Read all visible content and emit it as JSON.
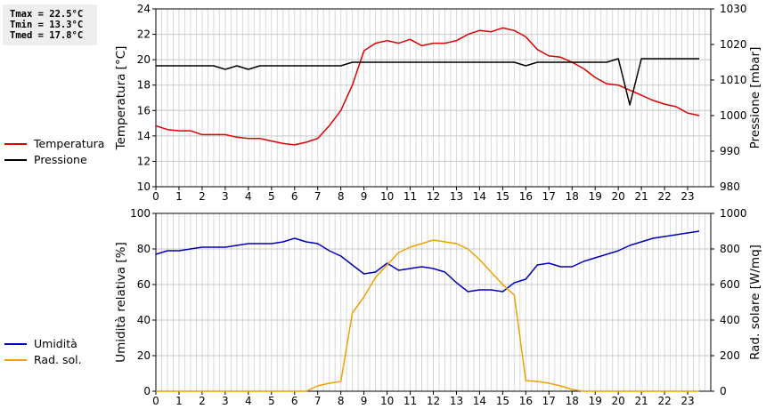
{
  "stats": {
    "tmax": "Tmax = 22.5°C",
    "tmin": "Tmin = 13.3°C",
    "tmed": "Tmed = 17.8°C"
  },
  "chart_data": [
    {
      "type": "line",
      "x_ticks": [
        0,
        1,
        2,
        3,
        4,
        5,
        6,
        7,
        8,
        9,
        10,
        11,
        12,
        13,
        14,
        15,
        16,
        17,
        18,
        19,
        20,
        21,
        22,
        23
      ],
      "xlim": [
        0,
        24
      ],
      "ylabel": "Temperatura [°C]",
      "ylabel_right": "Pressione [mbar]",
      "ylim": [
        10,
        24
      ],
      "ylim_right": [
        980,
        1030
      ],
      "y_ticks": [
        10,
        12,
        14,
        16,
        18,
        20,
        22,
        24
      ],
      "y_ticks_right": [
        980,
        990,
        1000,
        1010,
        1020,
        1030
      ],
      "grid": true,
      "legend_placement": "left",
      "series": [
        {
          "name": "Temperatura",
          "axis": "left",
          "color": "#dd0000",
          "x": [
            0,
            0.5,
            1,
            1.5,
            2,
            2.5,
            3,
            3.5,
            4,
            4.5,
            5,
            5.5,
            6,
            6.5,
            7,
            7.5,
            8,
            8.5,
            9,
            9.5,
            10,
            10.5,
            11,
            11.5,
            12,
            12.5,
            13,
            13.5,
            14,
            14.5,
            15,
            15.5,
            16,
            16.5,
            17,
            17.5,
            18,
            18.5,
            19,
            19.5,
            20,
            20.5,
            21,
            21.5,
            22,
            22.5,
            23,
            23.5
          ],
          "y": [
            14.8,
            14.5,
            14.4,
            14.4,
            14.1,
            14.1,
            14.1,
            13.9,
            13.8,
            13.8,
            13.6,
            13.4,
            13.3,
            13.5,
            13.8,
            14.8,
            16.0,
            18.0,
            20.7,
            21.3,
            21.5,
            21.3,
            21.6,
            21.1,
            21.3,
            21.3,
            21.5,
            22.0,
            22.3,
            22.2,
            22.5,
            22.3,
            21.8,
            20.8,
            20.3,
            20.2,
            19.8,
            19.3,
            18.6,
            18.1,
            18.0,
            17.6,
            17.2,
            16.8,
            16.5,
            16.3,
            15.8,
            15.6
          ]
        },
        {
          "name": "Pressione",
          "axis": "right",
          "color": "#000000",
          "x": [
            0,
            0.5,
            1,
            1.5,
            2,
            2.5,
            3,
            3.5,
            4,
            4.5,
            5,
            5.5,
            6,
            6.5,
            7,
            7.5,
            8,
            8.5,
            9,
            9.5,
            10,
            10.5,
            11,
            11.5,
            12,
            12.5,
            13,
            13.5,
            14,
            14.5,
            15,
            15.5,
            16,
            16.5,
            17,
            17.5,
            18,
            18.5,
            19,
            19.5,
            20,
            20.5,
            21,
            21.5,
            22,
            22.5,
            23,
            23.5
          ],
          "y": [
            1014,
            1014,
            1014,
            1014,
            1014,
            1014,
            1013,
            1014,
            1013,
            1014,
            1014,
            1014,
            1014,
            1014,
            1014,
            1014,
            1014,
            1015,
            1015,
            1015,
            1015,
            1015,
            1015,
            1015,
            1015,
            1015,
            1015,
            1015,
            1015,
            1015,
            1015,
            1015,
            1014,
            1015,
            1015,
            1015,
            1015,
            1015,
            1015,
            1015,
            1016,
            1003,
            1016,
            1016,
            1016,
            1016,
            1016,
            1016
          ]
        }
      ]
    },
    {
      "type": "line",
      "x_ticks": [
        0,
        1,
        2,
        3,
        4,
        5,
        6,
        7,
        8,
        9,
        10,
        11,
        12,
        13,
        14,
        15,
        16,
        17,
        18,
        19,
        20,
        21,
        22,
        23
      ],
      "xlim": [
        0,
        24
      ],
      "ylabel": "Umidità relativa [%]",
      "ylabel_right": "Rad. solare [W/mq]",
      "ylim": [
        0,
        100
      ],
      "ylim_right": [
        0,
        1000
      ],
      "y_ticks": [
        0,
        20,
        40,
        60,
        80,
        100
      ],
      "y_ticks_right": [
        0,
        200,
        400,
        600,
        800,
        1000
      ],
      "grid": true,
      "legend_placement": "left",
      "series": [
        {
          "name": "Umidità",
          "axis": "left",
          "color": "#0000bb",
          "x": [
            0,
            0.5,
            1,
            1.5,
            2,
            2.5,
            3,
            3.5,
            4,
            4.5,
            5,
            5.5,
            6,
            6.5,
            7,
            7.5,
            8,
            8.5,
            9,
            9.5,
            10,
            10.5,
            11,
            11.5,
            12,
            12.5,
            13,
            13.5,
            14,
            14.5,
            15,
            15.5,
            16,
            16.5,
            17,
            17.5,
            18,
            18.5,
            19,
            19.5,
            20,
            20.5,
            21,
            21.5,
            22,
            22.5,
            23,
            23.5
          ],
          "y": [
            77,
            79,
            79,
            80,
            81,
            81,
            81,
            82,
            83,
            83,
            83,
            84,
            86,
            84,
            83,
            79,
            76,
            71,
            66,
            67,
            72,
            68,
            69,
            70,
            69,
            67,
            61,
            56,
            57,
            57,
            56,
            61,
            63,
            71,
            72,
            70,
            70,
            73,
            75,
            77,
            79,
            82,
            84,
            86,
            87,
            88,
            89,
            90
          ]
        },
        {
          "name": "Rad. sol.",
          "axis": "right",
          "color": "#f0a000",
          "x": [
            0,
            0.5,
            1,
            1.5,
            2,
            2.5,
            3,
            3.5,
            4,
            4.5,
            5,
            5.5,
            6,
            6.5,
            7,
            7.5,
            8,
            8.5,
            9,
            9.5,
            10,
            10.5,
            11,
            11.5,
            12,
            12.5,
            13,
            13.5,
            14,
            14.5,
            15,
            15.5,
            16,
            16.5,
            17,
            17.5,
            18,
            18.5,
            19,
            19.5,
            20,
            20.5,
            21,
            21.5,
            22,
            22.5,
            23,
            23.5
          ],
          "y": [
            0,
            0,
            0,
            0,
            0,
            0,
            0,
            0,
            0,
            0,
            0,
            0,
            0,
            0,
            30,
            45,
            55,
            440,
            530,
            640,
            710,
            780,
            810,
            830,
            850,
            840,
            830,
            800,
            740,
            670,
            600,
            540,
            60,
            55,
            45,
            30,
            10,
            0,
            0,
            0,
            0,
            0,
            0,
            0,
            0,
            0,
            0,
            0
          ]
        }
      ]
    }
  ]
}
